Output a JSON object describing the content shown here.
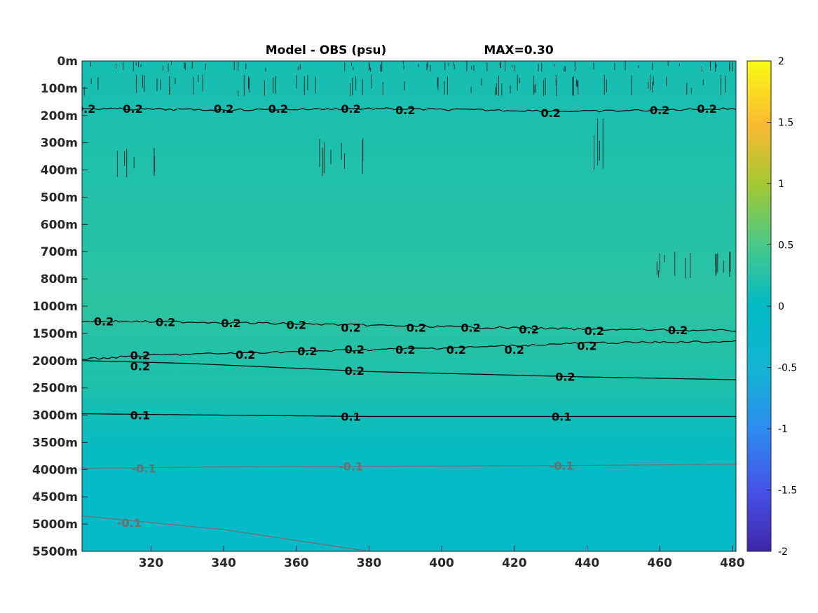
{
  "chart_data": {
    "type": "heatmap",
    "title_left": "Model - OBS (psu)",
    "title_right": "MAX=0.30",
    "xlabel": "",
    "ylabel": "",
    "x_ticks": [
      320,
      340,
      360,
      380,
      400,
      420,
      440,
      460,
      480
    ],
    "xlim": [
      301,
      481
    ],
    "y_ticks": [
      "0m",
      "100m",
      "200m",
      "300m",
      "400m",
      "500m",
      "600m",
      "700m",
      "800m",
      "1000m",
      "1500m",
      "2000m",
      "2500m",
      "3000m",
      "3500m",
      "4000m",
      "4500m",
      "5000m",
      "5500m"
    ],
    "colorbar": {
      "ticks": [
        "2",
        "1.5",
        "1",
        "0.5",
        "0",
        "-0.5",
        "-1",
        "-1.5",
        "-2"
      ],
      "range": [
        -2,
        2
      ],
      "colormap": "parula"
    },
    "field_levels": [
      {
        "depth_index": 0,
        "value": 0.15
      },
      {
        "depth_index": 4,
        "value": 0.22
      },
      {
        "depth_index": 9,
        "value": 0.3
      },
      {
        "depth_index": 12,
        "value": 0.2
      },
      {
        "depth_index": 14,
        "value": 0.05
      },
      {
        "depth_index": 16,
        "value": -0.1
      },
      {
        "depth_index": 18,
        "value": -0.12
      }
    ],
    "contours": [
      {
        "level": "0.2",
        "color": "#000000",
        "points": [
          [
            301,
            1.75
          ],
          [
            340,
            1.8
          ],
          [
            380,
            1.75
          ],
          [
            410,
            1.8
          ],
          [
            440,
            1.85
          ],
          [
            460,
            1.8
          ],
          [
            481,
            1.75
          ]
        ],
        "labels": [
          [
            302,
            1.75
          ],
          [
            315,
            1.75
          ],
          [
            340,
            1.75
          ],
          [
            355,
            1.75
          ],
          [
            375,
            1.75
          ],
          [
            390,
            1.8
          ],
          [
            430,
            1.9
          ],
          [
            460,
            1.8
          ],
          [
            473,
            1.75
          ]
        ]
      },
      {
        "level": "0.2",
        "color": "#000000",
        "points": [
          [
            301,
            9.55
          ],
          [
            330,
            9.58
          ],
          [
            360,
            9.65
          ],
          [
            400,
            9.75
          ],
          [
            440,
            9.85
          ],
          [
            481,
            9.9
          ]
        ],
        "labels": [
          [
            307,
            9.55
          ],
          [
            324,
            9.58
          ],
          [
            342,
            9.62
          ],
          [
            360,
            9.68
          ],
          [
            375,
            9.78
          ],
          [
            393,
            9.78
          ],
          [
            408,
            9.78
          ],
          [
            424,
            9.85
          ],
          [
            442,
            9.9
          ],
          [
            465,
            9.88
          ]
        ]
      },
      {
        "level": "0.2",
        "color": "#000000",
        "points": [
          [
            301,
            10.95
          ],
          [
            320,
            10.8
          ],
          [
            350,
            10.7
          ],
          [
            380,
            10.6
          ],
          [
            410,
            10.5
          ],
          [
            440,
            10.35
          ],
          [
            481,
            10.3
          ]
        ],
        "labels": [
          [
            317,
            10.8
          ],
          [
            346,
            10.78
          ],
          [
            363,
            10.65
          ],
          [
            376,
            10.58
          ],
          [
            390,
            10.6
          ],
          [
            404,
            10.6
          ],
          [
            420,
            10.6
          ],
          [
            440,
            10.45
          ]
        ]
      },
      {
        "level": "0.2",
        "color": "#000000",
        "points": [
          [
            301,
            11.0
          ],
          [
            330,
            11.1
          ],
          [
            380,
            11.4
          ],
          [
            440,
            11.6
          ],
          [
            481,
            11.7
          ]
        ],
        "labels": [
          [
            317,
            11.2
          ],
          [
            376,
            11.37
          ],
          [
            434,
            11.59
          ]
        ]
      },
      {
        "level": "0.1",
        "color": "#000000",
        "points": [
          [
            301,
            12.95
          ],
          [
            340,
            13.0
          ],
          [
            380,
            13.05
          ],
          [
            440,
            13.05
          ],
          [
            481,
            13.05
          ]
        ],
        "labels": [
          [
            317,
            13.0
          ],
          [
            375,
            13.05
          ],
          [
            433,
            13.05
          ]
        ]
      },
      {
        "level": "-0.1",
        "color": "#6e6e6e",
        "points": [
          [
            301,
            14.95
          ],
          [
            340,
            14.9
          ],
          [
            380,
            14.88
          ],
          [
            440,
            14.85
          ],
          [
            481,
            14.8
          ]
        ],
        "labels": [
          [
            318,
            14.95
          ],
          [
            375,
            14.87
          ],
          [
            433,
            14.85
          ]
        ]
      },
      {
        "level": "-0.1",
        "color": "#6e6e6e",
        "points": [
          [
            301,
            16.7
          ],
          [
            340,
            17.2
          ],
          [
            380,
            18.0
          ]
        ],
        "labels": [
          [
            314,
            16.95
          ]
        ]
      }
    ],
    "noise_regions": [
      {
        "x": [
          301,
          481
        ],
        "y": [
          0,
          0.4
        ]
      },
      {
        "x": [
          301,
          481
        ],
        "y": [
          0.5,
          1.3
        ]
      },
      {
        "x": [
          310,
          322
        ],
        "y": [
          3.2,
          4.3
        ]
      },
      {
        "x": [
          366,
          380
        ],
        "y": [
          2.8,
          4.3
        ]
      },
      {
        "x": [
          441,
          445
        ],
        "y": [
          1.9,
          4.0
        ]
      },
      {
        "x": [
          459,
          481
        ],
        "y": [
          7.0,
          8.0
        ]
      }
    ]
  }
}
